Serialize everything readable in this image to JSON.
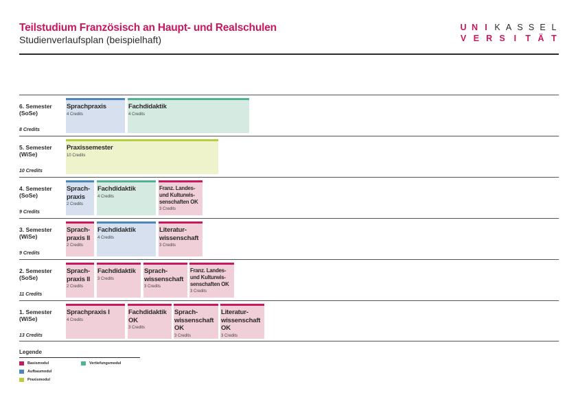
{
  "header": {
    "title": "Teilstudium Französisch an Haupt- und Realschulen",
    "subtitle": "Studienverlaufsplan (beispielhaft)"
  },
  "logo": {
    "row1": [
      "U",
      "N",
      "I",
      "K",
      "A",
      "S",
      "S",
      "E",
      "L"
    ],
    "row2": [
      "V",
      "E",
      "R",
      "S",
      "I",
      "T",
      "Ä",
      "T"
    ]
  },
  "colors": {
    "brand": "#c8175d",
    "basismodul": "#c8175d",
    "aufbaumodul": "#4a86bf",
    "praxismodul": "#b6cf3b",
    "vertiefungsmodul": "#4db394"
  },
  "semesters": [
    {
      "label": "6. Semester\n(SoSe)",
      "credits": "8 Credits",
      "modules": [
        {
          "name": "Sprachpraxis",
          "credits": "4 Credits",
          "type": "aufbau"
        },
        {
          "name": "Fachdidaktik",
          "credits": "4 Credits",
          "type": "vertief"
        }
      ]
    },
    {
      "label": "5. Semester\n(WiSe)",
      "credits": "10 Credits",
      "modules": [
        {
          "name": "Praxissemester",
          "credits": "10 Credits",
          "type": "praxis"
        }
      ]
    },
    {
      "label": "4. Semester\n(SoSe)",
      "credits": "9 Credits",
      "modules": [
        {
          "name": "Sprach-\npraxis",
          "credits": "2 Credits",
          "type": "aufbau"
        },
        {
          "name": "Fachdidaktik",
          "credits": "4 Credits",
          "type": "vertief"
        },
        {
          "name": "Franz. Landes-\nund Kulturwis-\nsenschaften OK",
          "credits": "3 Credits",
          "type": "basis",
          "small": true
        }
      ]
    },
    {
      "label": "3. Semester\n(WiSe)",
      "credits": "9 Credits",
      "modules": [
        {
          "name": "Sprach-\npraxis II",
          "credits": "2 Credits",
          "type": "basis"
        },
        {
          "name": "Fachdidaktik",
          "credits": "4 Credits",
          "type": "aufbau"
        },
        {
          "name": "Literatur-\nwissenschaft",
          "credits": "3 Credits",
          "type": "basis"
        }
      ]
    },
    {
      "label": "2. Semester\n(SoSe)",
      "credits": "11 Credits",
      "modules": [
        {
          "name": "Sprach-\npraxis II",
          "credits": "2 Credits",
          "type": "basis"
        },
        {
          "name": "Fachdidaktik",
          "credits": "3 Credits",
          "type": "basis"
        },
        {
          "name": "Sprach-\nwissenschaft",
          "credits": "3 Credits",
          "type": "basis"
        },
        {
          "name": "Franz. Landes-\nund Kulturwis-\nsenschaften OK",
          "credits": "3 Credits",
          "type": "basis",
          "small": true
        }
      ]
    },
    {
      "label": "1. Semester\n(WiSe)",
      "credits": "13 Credits",
      "modules": [
        {
          "name": "Sprachpraxis I",
          "credits": "4 Credits",
          "type": "basis"
        },
        {
          "name": "Fachdidaktik\nOK",
          "credits": "3 Credits",
          "type": "basis"
        },
        {
          "name": "Sprach-\nwissenschaft\nOK",
          "credits": "3 Credits",
          "type": "basis"
        },
        {
          "name": "Literatur-\nwissenschaft\nOK",
          "credits": "3 Credits",
          "type": "basis"
        }
      ]
    }
  ],
  "legend": {
    "title": "Legende",
    "items": [
      {
        "label": "Basismodul",
        "type": "basis"
      },
      {
        "label": "Aufbaumodul",
        "type": "aufbau"
      },
      {
        "label": "Praxismodul",
        "type": "praxis"
      },
      {
        "label": "Vertiefungsmodul",
        "type": "vertief"
      }
    ]
  }
}
